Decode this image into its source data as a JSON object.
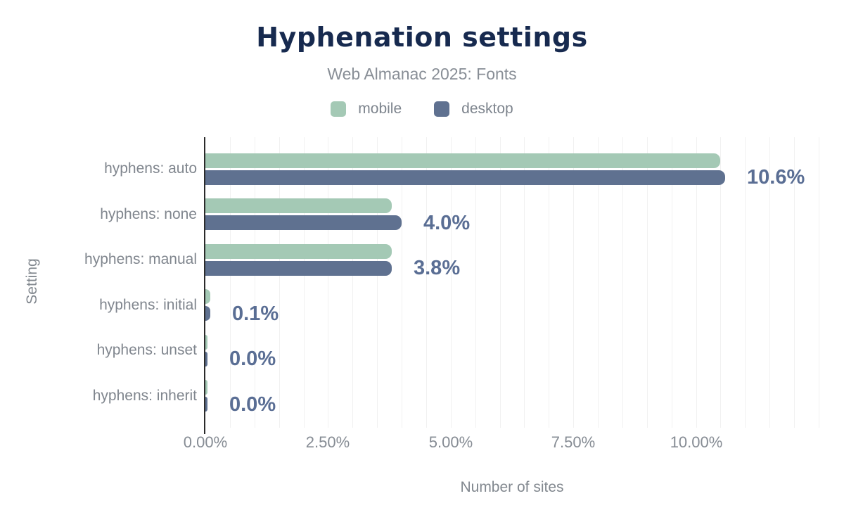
{
  "header": {
    "title": "Hyphenation settings",
    "subtitle": "Web Almanac 2025: Fonts"
  },
  "legend": [
    {
      "label": "mobile",
      "color": "#a4c9b5"
    },
    {
      "label": "desktop",
      "color": "#5f7190"
    }
  ],
  "axes": {
    "x_title": "Number of sites",
    "y_title": "Setting",
    "x_tick_labels": [
      "0.00%",
      "2.50%",
      "5.00%",
      "7.50%",
      "10.00%"
    ],
    "x_tick_values": [
      0,
      2.5,
      5,
      7.5,
      10
    ]
  },
  "colors": {
    "title": "#172a4f",
    "subtitle": "#888e96",
    "axis_text": "#82888f",
    "category_text": "#80868e",
    "value_label": "#5a6e94",
    "mobile_bar": "#a4c9b5",
    "desktop_bar": "#5f7190",
    "gridline": "#f1f1f1",
    "axis_line": "#2b2b2b"
  },
  "chart_data": {
    "type": "bar",
    "orientation": "horizontal",
    "title": "Hyphenation settings",
    "subtitle": "Web Almanac 2025: Fonts",
    "categories": [
      "hyphens: auto",
      "hyphens: none",
      "hyphens: manual",
      "hyphens: initial",
      "hyphens: unset",
      "hyphens: inherit"
    ],
    "series": [
      {
        "name": "mobile",
        "color": "#a4c9b5",
        "values": [
          10.5,
          3.8,
          3.8,
          0.1,
          0.0,
          0.0
        ]
      },
      {
        "name": "desktop",
        "color": "#5f7190",
        "values": [
          10.6,
          4.0,
          3.8,
          0.1,
          0.0,
          0.0
        ]
      }
    ],
    "value_labels": [
      "10.6%",
      "4.0%",
      "3.8%",
      "0.1%",
      "0.0%",
      "0.0%"
    ],
    "xlabel": "Number of sites",
    "ylabel": "Setting",
    "xlim": [
      0,
      12.5
    ],
    "grid_step": 0.5,
    "grid": "vertical gridlines every 0.5%",
    "legend_position": "top"
  }
}
